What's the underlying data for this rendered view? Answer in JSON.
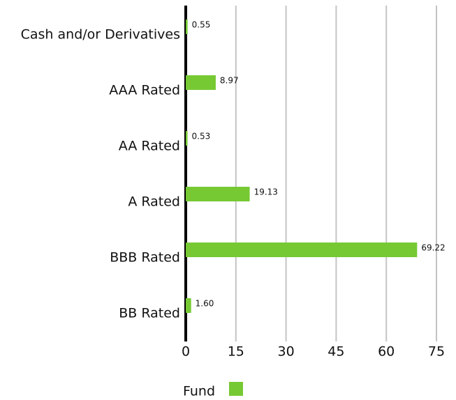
{
  "chart_data": {
    "type": "hbar",
    "categories": [
      "Cash and/or Derivatives",
      "AAA Rated",
      "AA Rated",
      "A Rated",
      "BBB Rated",
      "BB Rated"
    ],
    "series": [
      {
        "name": "Fund",
        "color": "#76c933",
        "values": [
          0.55,
          8.97,
          0.53,
          19.13,
          69.22,
          1.6
        ],
        "value_labels": [
          "0.55",
          "8.97",
          "0.53",
          "19.13",
          "69.22",
          "1.60"
        ]
      }
    ],
    "xlim": [
      0,
      75
    ],
    "xticks": [
      0,
      15,
      30,
      45,
      60,
      75
    ],
    "grid": true,
    "legend": "bottom"
  }
}
